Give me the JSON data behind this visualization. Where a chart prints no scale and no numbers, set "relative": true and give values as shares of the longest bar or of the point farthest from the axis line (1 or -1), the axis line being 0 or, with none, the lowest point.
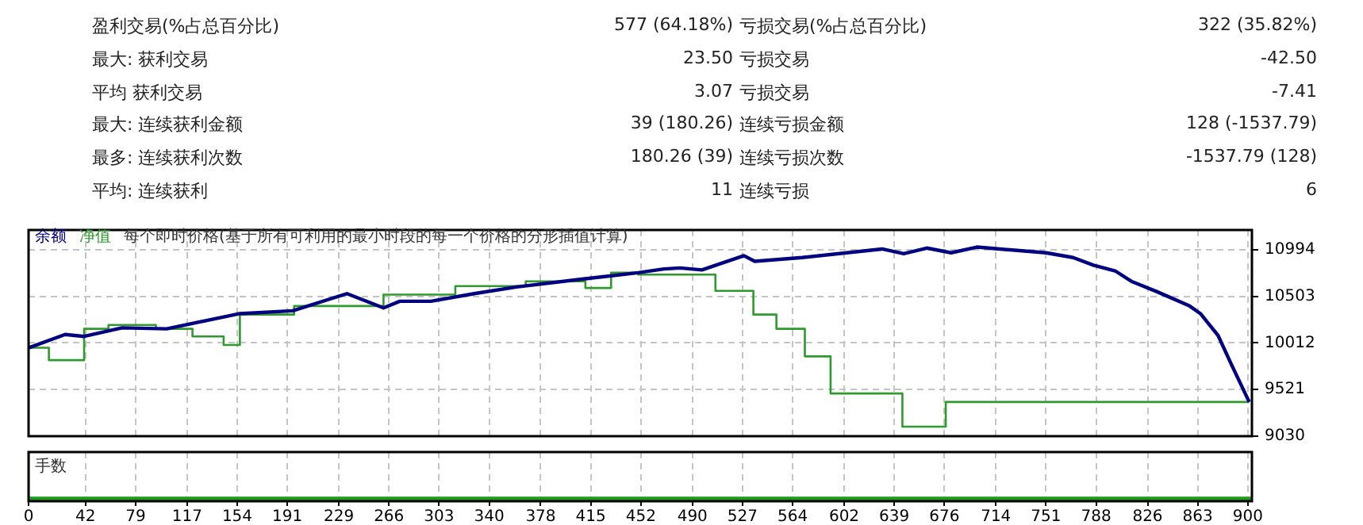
{
  "chart_data": [
    {
      "type": "line",
      "title": "每个即时价格(基于所有可利用的最小时段的每一个价格的分形插值计算)",
      "annotations": [
        "盈利交易(%占总百分比)",
        "577 (64.18%)",
        "亏损交易(%占总百分比)",
        "322 (35.82%)",
        "最大: 获利交易",
        "23.50",
        "亏损交易",
        "-42.50",
        "平均 获利交易",
        "3.07",
        "亏损交易",
        "-7.41",
        "最大: 连续获利金额",
        "39 (180.26)",
        "连续亏损金额",
        "128 (-1537.79)",
        "最多: 连续获利次数",
        "180.26 (39)",
        "连续亏损次数",
        "-1537.79 (128)",
        "平均: 连续获利",
        "11",
        "连续亏损",
        "6"
      ],
      "series": [
        {
          "name": "余额",
          "type": "line",
          "color": "#000080",
          "x": [
            0,
            27,
            41,
            69,
            102,
            156,
            195,
            235,
            262,
            274,
            297,
            329,
            360,
            407,
            450,
            469,
            481,
            497,
            528,
            536,
            571,
            630,
            646,
            663,
            681,
            700,
            751,
            771,
            786,
            802,
            814,
            833,
            857,
            865,
            878,
            888,
            901
          ],
          "values": [
            9960,
            10100,
            10080,
            10170,
            10160,
            10320,
            10350,
            10530,
            10380,
            10450,
            10450,
            10530,
            10600,
            10680,
            10750,
            10790,
            10800,
            10780,
            10930,
            10870,
            10910,
            11000,
            10950,
            11010,
            10960,
            11020,
            10960,
            10910,
            10830,
            10770,
            10660,
            10550,
            10400,
            10320,
            10090,
            9780,
            9390
          ]
        },
        {
          "name": "净值",
          "type": "step",
          "color": "#2e9a2e",
          "x": [
            0,
            15,
            41,
            59,
            94,
            121,
            144,
            156,
            196,
            262,
            315,
            367,
            411,
            430,
            450,
            507,
            535,
            552,
            573,
            592,
            645,
            677,
            700,
            901
          ],
          "values": [
            10010,
            9960,
            9830,
            10160,
            10200,
            10160,
            10080,
            9990,
            10310,
            10400,
            10520,
            10610,
            10660,
            10590,
            10750,
            10730,
            10560,
            10310,
            10160,
            9870,
            9480,
            9130,
            9390,
            9390
          ]
        }
      ],
      "xlim": [
        0,
        903
      ],
      "xticks": [
        0,
        42,
        79,
        117,
        154,
        191,
        229,
        266,
        303,
        340,
        378,
        415,
        452,
        490,
        527,
        564,
        602,
        639,
        676,
        714,
        751,
        788,
        826,
        863,
        900
      ],
      "ylim": [
        9030,
        11200
      ],
      "yticks": [
        9030,
        9521,
        10012,
        10503,
        10994
      ],
      "tick_labels": "y",
      "grid": true,
      "legend": "top left",
      "marker": "none"
    },
    {
      "type": "area",
      "title": "手数",
      "relative": true,
      "series": [
        {
          "color": "#1f9a1f",
          "x": [
            0,
            6,
            903
          ],
          "values": [
            1,
            0.07,
            0.07
          ]
        }
      ],
      "xlim": [
        0,
        903
      ],
      "xticks": [
        0,
        42,
        79,
        117,
        154,
        191,
        229,
        266,
        303,
        340,
        378,
        415,
        452,
        490,
        527,
        564,
        602,
        639,
        676,
        714,
        751,
        788,
        826,
        863,
        900
      ],
      "tick_labels": "x",
      "grid": "x"
    }
  ]
}
